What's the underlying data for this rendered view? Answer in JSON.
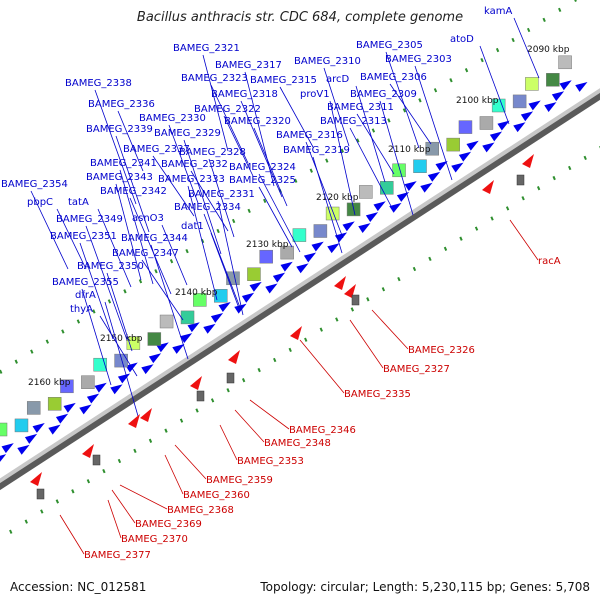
{
  "title": "Bacillus anthracis str. CDC 684, complete genome",
  "accession": "Accession: NC_012581",
  "summary": "Topology: circular; Length: 5,230,115 bp; Genes: 5,708",
  "colors": {
    "forward_label": "#0000cc",
    "reverse_label": "#cc0000",
    "arrow": "#0000ee",
    "backbone": "#8a8a8a"
  },
  "ruler": [
    "2090 kbp",
    "2100 kbp",
    "2110 kbp",
    "2120 kbp",
    "2130 kbp",
    "2140 kbp",
    "2150 kbp",
    "2160 kbp"
  ],
  "genes_forward": [
    "kamA",
    "atoD",
    "BAMEG_2305",
    "BAMEG_2303",
    "BAMEG_2306",
    "BAMEG_2310",
    "arcD",
    "BAMEG_2309",
    "BAMEG_2311",
    "BAMEG_2313",
    "BAMEG_2321",
    "BAMEG_2317",
    "BAMEG_2315",
    "BAMEG_2323",
    "BAMEG_2318",
    "proV1",
    "BAMEG_2322",
    "BAMEG_2320",
    "BAMEG_2316",
    "BAMEG_2338",
    "BAMEG_2336",
    "BAMEG_2330",
    "BAMEG_2339",
    "BAMEG_2329",
    "BAMEG_2337",
    "BAMEG_2328",
    "BAMEG_2319",
    "BAMEG_2341",
    "BAMEG_2332",
    "BAMEG_2324",
    "BAMEG_2343",
    "BAMEG_2333",
    "BAMEG_2325",
    "BAMEG_2354",
    "BAMEG_2342",
    "BAMEG_2331",
    "pbpC",
    "tatA",
    "BAMEG_2334",
    "BAMEG_2349",
    "asnO3",
    "dat1",
    "BAMEG_2351",
    "BAMEG_2344",
    "BAMEG_2347",
    "BAMEG_2350",
    "BAMEG_2355",
    "dfrA",
    "thyA"
  ],
  "genes_reverse": [
    "racA",
    "BAMEG_2326",
    "BAMEG_2327",
    "BAMEG_2335",
    "BAMEG_2346",
    "BAMEG_2348",
    "BAMEG_2353",
    "BAMEG_2359",
    "BAMEG_2360",
    "BAMEG_2368",
    "BAMEG_2369",
    "BAMEG_2370",
    "BAMEG_2377"
  ]
}
